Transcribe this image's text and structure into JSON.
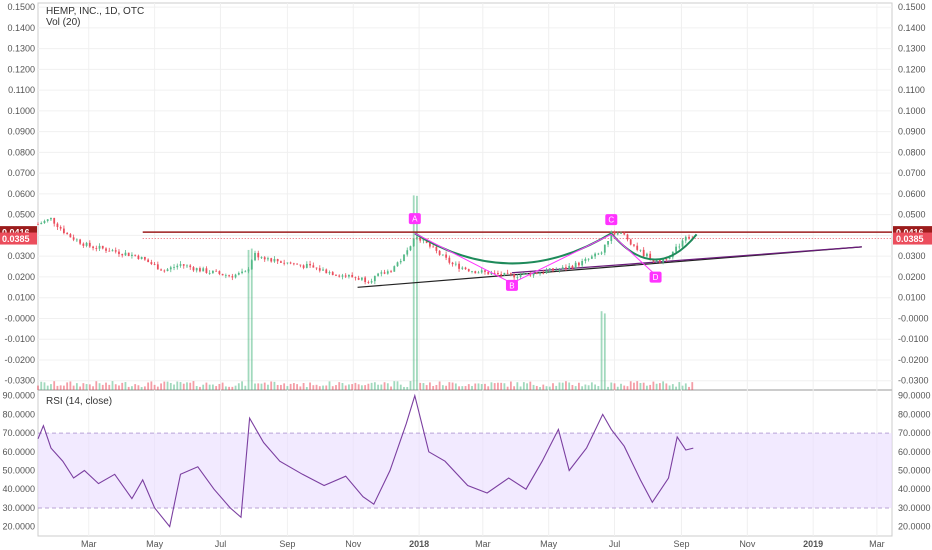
{
  "header": {
    "symbol_line": "HEMP, INC., 1D, OTC",
    "volume_label": "Vol (20)",
    "rsi_label": "RSI (14, close)"
  },
  "colors": {
    "up": "#53b987",
    "down": "#eb4d5c",
    "resistance": "#9c1c1c",
    "support": "#6a1b7a",
    "pattern": "#ff33ff",
    "cup": "#1e8a5a",
    "rsi_line": "#7b3fa0",
    "rsi_band": "#eadcff"
  },
  "chart_data": [
    {
      "type": "candlestick",
      "title": "HEMP, INC., 1D, OTC",
      "x_tick_labels": [
        "Mar",
        "May",
        "Jul",
        "Sep",
        "Nov",
        "2018",
        "Mar",
        "May",
        "Jul",
        "Sep",
        "Nov",
        "2019",
        "Mar"
      ],
      "x_tick_dates": [
        "2017-03-01",
        "2017-05-01",
        "2017-07-01",
        "2017-09-01",
        "2017-11-01",
        "2018-01-01",
        "2018-03-01",
        "2018-05-01",
        "2018-07-01",
        "2018-09-01",
        "2018-11-01",
        "2019-01-01",
        "2019-03-01"
      ],
      "x_range": [
        "2017-01-13",
        "2019-03-15"
      ],
      "y_tick_labels": [
        "0.1500",
        "0.1400",
        "0.1300",
        "0.1200",
        "0.1100",
        "0.1000",
        "0.0900",
        "0.0800",
        "0.0700",
        "0.0600",
        "0.0500",
        "0.0400",
        "0.0300",
        "0.0200",
        "0.0100",
        "-0.0000",
        "-0.0100",
        "-0.0200",
        "-0.0300"
      ],
      "ylim": [
        -0.034,
        0.152
      ],
      "close_series": [
        [
          "2017-01-13",
          0.0455
        ],
        [
          "2017-01-25",
          0.048
        ],
        [
          "2017-02-10",
          0.04
        ],
        [
          "2017-02-28",
          0.035
        ],
        [
          "2017-03-20",
          0.033
        ],
        [
          "2017-04-15",
          0.03
        ],
        [
          "2017-05-10",
          0.023
        ],
        [
          "2017-05-25",
          0.026
        ],
        [
          "2017-06-15",
          0.023
        ],
        [
          "2017-07-10",
          0.0205
        ],
        [
          "2017-07-25",
          0.022
        ],
        [
          "2017-08-01",
          0.031
        ],
        [
          "2017-08-20",
          0.028
        ],
        [
          "2017-09-20",
          0.025
        ],
        [
          "2017-10-20",
          0.021
        ],
        [
          "2017-11-15",
          0.0185
        ],
        [
          "2017-12-05",
          0.023
        ],
        [
          "2017-12-20",
          0.031
        ],
        [
          "2017-12-28",
          0.041
        ],
        [
          "2018-01-10",
          0.035
        ],
        [
          "2018-02-01",
          0.026
        ],
        [
          "2018-02-20",
          0.023
        ],
        [
          "2018-03-10",
          0.0215
        ],
        [
          "2018-03-25",
          0.0205
        ],
        [
          "2018-04-20",
          0.022
        ],
        [
          "2018-05-15",
          0.024
        ],
        [
          "2018-06-01",
          0.027
        ],
        [
          "2018-06-20",
          0.032
        ],
        [
          "2018-06-28",
          0.042
        ],
        [
          "2018-07-10",
          0.04
        ],
        [
          "2018-07-25",
          0.032
        ],
        [
          "2018-08-10",
          0.027
        ],
        [
          "2018-08-25",
          0.032
        ],
        [
          "2018-09-05",
          0.04
        ],
        [
          "2018-09-12",
          0.0385
        ]
      ],
      "price_labels": [
        {
          "value": 0.0416,
          "text": "0.0416",
          "color": "#9c1c1c"
        },
        {
          "value": 0.0385,
          "text": "0.0385",
          "color": "#eb4d5c"
        }
      ],
      "pattern_points": [
        {
          "label": "A",
          "date": "2017-12-28",
          "value": 0.044
        },
        {
          "label": "B",
          "date": "2018-03-28",
          "value": 0.02
        },
        {
          "label": "C",
          "date": "2018-06-28",
          "value": 0.0435
        },
        {
          "label": "D",
          "date": "2018-08-08",
          "value": 0.024
        }
      ],
      "resistance_line": {
        "from": [
          "2017-04-20",
          0.0416
        ],
        "to": [
          "2019-03-15",
          0.0416
        ]
      },
      "support_line": {
        "from": [
          "2017-11-05",
          0.015
        ],
        "to": [
          "2019-02-15",
          0.0345
        ]
      },
      "volume": {
        "label": "Vol (20)",
        "spikes": [
          {
            "date": "2017-07-28",
            "value": 0.07
          },
          {
            "date": "2017-12-28",
            "value": 0.097
          },
          {
            "date": "2018-06-20",
            "value": 0.038
          }
        ]
      }
    },
    {
      "type": "line",
      "title": "RSI (14, close)",
      "y_tick_labels": [
        "90.0000",
        "80.0000",
        "70.0000",
        "60.0000",
        "50.0000",
        "40.0000",
        "30.0000",
        "20.0000"
      ],
      "ylim": [
        15,
        92
      ],
      "band": [
        30,
        70
      ],
      "series": [
        {
          "points": [
            [
              "2017-01-13",
              67
            ],
            [
              "2017-01-18",
              74
            ],
            [
              "2017-01-25",
              62
            ],
            [
              "2017-02-05",
              55
            ],
            [
              "2017-02-15",
              46
            ],
            [
              "2017-02-25",
              50
            ],
            [
              "2017-03-10",
              43
            ],
            [
              "2017-03-25",
              48
            ],
            [
              "2017-04-10",
              35
            ],
            [
              "2017-04-20",
              45
            ],
            [
              "2017-05-01",
              30
            ],
            [
              "2017-05-15",
              20
            ],
            [
              "2017-05-25",
              48
            ],
            [
              "2017-06-10",
              52
            ],
            [
              "2017-06-25",
              40
            ],
            [
              "2017-07-10",
              30
            ],
            [
              "2017-07-20",
              25
            ],
            [
              "2017-07-28",
              78
            ],
            [
              "2017-08-10",
              65
            ],
            [
              "2017-08-25",
              55
            ],
            [
              "2017-09-15",
              48
            ],
            [
              "2017-10-05",
              42
            ],
            [
              "2017-10-25",
              47
            ],
            [
              "2017-11-10",
              36
            ],
            [
              "2017-11-20",
              32
            ],
            [
              "2017-12-05",
              50
            ],
            [
              "2017-12-20",
              75
            ],
            [
              "2017-12-28",
              90
            ],
            [
              "2018-01-10",
              60
            ],
            [
              "2018-01-25",
              55
            ],
            [
              "2018-02-15",
              42
            ],
            [
              "2018-03-05",
              38
            ],
            [
              "2018-03-25",
              46
            ],
            [
              "2018-04-10",
              40
            ],
            [
              "2018-04-25",
              55
            ],
            [
              "2018-05-10",
              72
            ],
            [
              "2018-05-20",
              50
            ],
            [
              "2018-06-05",
              62
            ],
            [
              "2018-06-20",
              80
            ],
            [
              "2018-06-28",
              72
            ],
            [
              "2018-07-10",
              63
            ],
            [
              "2018-07-25",
              45
            ],
            [
              "2018-08-05",
              33
            ],
            [
              "2018-08-20",
              46
            ],
            [
              "2018-08-28",
              68
            ],
            [
              "2018-09-05",
              61
            ],
            [
              "2018-09-12",
              62
            ]
          ]
        }
      ]
    }
  ]
}
